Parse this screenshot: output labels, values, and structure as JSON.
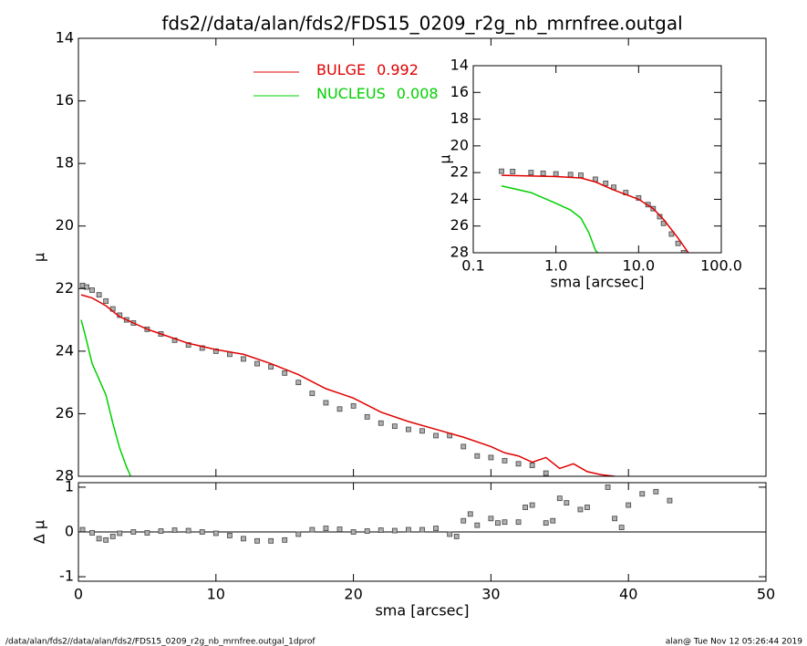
{
  "footer": {
    "left": "/data/alan/fds2//data/alan/fds2/FDS15_0209_r2g_nb_mrnfree.outgal_1dprof",
    "right": "alan@  Tue Nov 12 05:26:44 2019"
  },
  "chart_data": [
    {
      "type": "line",
      "title": "fds2//data/alan/fds2/FDS15_0209_r2g_nb_mrnfree.outgal",
      "ylabel": "μ",
      "xlim": [
        0,
        50
      ],
      "ylim": [
        14,
        28
      ],
      "y_inverted": true,
      "yticks": [
        14,
        16,
        18,
        20,
        22,
        24,
        26,
        28
      ],
      "series": [
        {
          "color": "#8c8c8c",
          "mode": "markers",
          "x": [
            0.3,
            0.6,
            1,
            1.5,
            2,
            2.5,
            3,
            3.5,
            4,
            5,
            6,
            7,
            8,
            9,
            10,
            11,
            12,
            13,
            14,
            15,
            16,
            17,
            18,
            19,
            20,
            21,
            22,
            23,
            24,
            25,
            26,
            27,
            28,
            29,
            30,
            31,
            32,
            33,
            34
          ],
          "values": [
            21.9,
            21.95,
            22.05,
            22.2,
            22.4,
            22.65,
            22.85,
            23.0,
            23.1,
            23.3,
            23.45,
            23.65,
            23.8,
            23.9,
            24.0,
            24.1,
            24.25,
            24.4,
            24.5,
            24.7,
            25.0,
            25.35,
            25.65,
            25.85,
            25.75,
            26.1,
            26.3,
            26.4,
            26.5,
            26.55,
            26.7,
            26.7,
            27.05,
            27.35,
            27.4,
            27.5,
            27.6,
            27.65,
            27.9
          ]
        },
        {
          "name": "BULGE",
          "fraction": 0.992,
          "color": "#e00000",
          "mode": "line",
          "x": [
            0.2,
            1,
            2,
            3,
            4,
            5,
            6,
            8,
            10,
            12,
            14,
            16,
            18,
            20,
            22,
            24,
            26,
            28,
            30,
            31,
            32,
            33,
            34,
            35,
            36,
            37,
            38,
            39
          ],
          "values": [
            22.2,
            22.3,
            22.55,
            22.9,
            23.1,
            23.3,
            23.45,
            23.75,
            23.95,
            24.1,
            24.4,
            24.75,
            25.2,
            25.5,
            25.95,
            26.25,
            26.5,
            26.75,
            27.05,
            27.25,
            27.35,
            27.55,
            27.4,
            27.75,
            27.6,
            27.85,
            27.95,
            28.0
          ]
        },
        {
          "name": "NUCLEUS",
          "fraction": 0.008,
          "color": "#00d000",
          "mode": "line",
          "x": [
            0.2,
            0.5,
            1,
            1.5,
            2,
            2.5,
            3,
            3.5,
            3.8
          ],
          "values": [
            23.0,
            23.5,
            24.4,
            24.9,
            25.4,
            26.3,
            27.1,
            27.7,
            28.0
          ]
        }
      ]
    },
    {
      "type": "scatter",
      "xlabel": "sma [arcsec]",
      "ylabel": "Δ μ",
      "xlim": [
        0,
        50
      ],
      "ylim": [
        -1.1,
        1.1
      ],
      "xticks": [
        0,
        10,
        20,
        30,
        40,
        50
      ],
      "yticks": [
        -1,
        0,
        1
      ],
      "reference_line": 0,
      "series": [
        {
          "color": "#8c8c8c",
          "x": [
            0.3,
            1,
            1.5,
            2,
            2.5,
            3,
            4,
            5,
            6,
            7,
            8,
            9,
            10,
            11,
            12,
            13,
            14,
            15,
            16,
            17,
            18,
            19,
            20,
            21,
            22,
            23,
            24,
            25,
            26,
            27,
            27.5,
            28,
            28.5,
            29,
            30,
            30.5,
            31,
            32,
            32.5,
            33,
            34,
            34.5,
            35,
            35.5,
            36.5,
            37,
            38.5,
            39,
            39.5,
            40,
            41,
            42,
            43
          ],
          "values": [
            0.05,
            -0.02,
            -0.15,
            -0.18,
            -0.1,
            -0.03,
            0.0,
            -0.02,
            0.02,
            0.04,
            0.03,
            0.0,
            -0.03,
            -0.08,
            -0.15,
            -0.2,
            -0.2,
            -0.18,
            -0.05,
            0.05,
            0.08,
            0.06,
            0.0,
            0.02,
            0.04,
            0.03,
            0.05,
            0.05,
            0.08,
            -0.05,
            -0.1,
            0.25,
            0.4,
            0.15,
            0.3,
            0.2,
            0.22,
            0.22,
            0.55,
            0.6,
            0.2,
            0.25,
            0.75,
            0.65,
            0.5,
            0.55,
            1.0,
            0.3,
            0.1,
            0.6,
            0.85,
            0.9,
            0.7
          ]
        }
      ]
    },
    {
      "type": "line",
      "xlabel": "sma [arcsec]",
      "ylabel": "μ",
      "xscale": "log",
      "xlim": [
        0.1,
        100
      ],
      "ylim": [
        14,
        28
      ],
      "y_inverted": true,
      "xticks": [
        {
          "value": 0.1,
          "label": "0.1"
        },
        {
          "value": 1,
          "label": "1.0"
        },
        {
          "value": 10,
          "label": "10.0"
        },
        {
          "value": 100,
          "label": "100.0"
        }
      ],
      "yticks": [
        14,
        16,
        18,
        20,
        22,
        24,
        26,
        28
      ],
      "series": [
        {
          "color": "#8c8c8c",
          "mode": "markers",
          "x": [
            0.22,
            0.3,
            0.5,
            0.7,
            1,
            1.5,
            2,
            3,
            4,
            5,
            7,
            10,
            13,
            15,
            18,
            20,
            25,
            30,
            35
          ],
          "values": [
            21.9,
            21.92,
            22.0,
            22.05,
            22.1,
            22.15,
            22.2,
            22.5,
            22.8,
            23.1,
            23.5,
            23.9,
            24.4,
            24.7,
            25.3,
            25.8,
            26.6,
            27.3,
            28.0
          ]
        },
        {
          "color": "#e00000",
          "mode": "line",
          "x": [
            0.22,
            1,
            2,
            3,
            5,
            10,
            15,
            20,
            30,
            40
          ],
          "values": [
            22.2,
            22.3,
            22.4,
            22.7,
            23.3,
            24.0,
            24.7,
            25.5,
            26.9,
            28.0
          ]
        },
        {
          "color": "#00d000",
          "mode": "line",
          "x": [
            0.22,
            0.5,
            1,
            1.5,
            2,
            2.5,
            3,
            3.2
          ],
          "values": [
            23.0,
            23.5,
            24.3,
            24.8,
            25.4,
            26.5,
            27.8,
            28.0
          ]
        }
      ]
    }
  ]
}
